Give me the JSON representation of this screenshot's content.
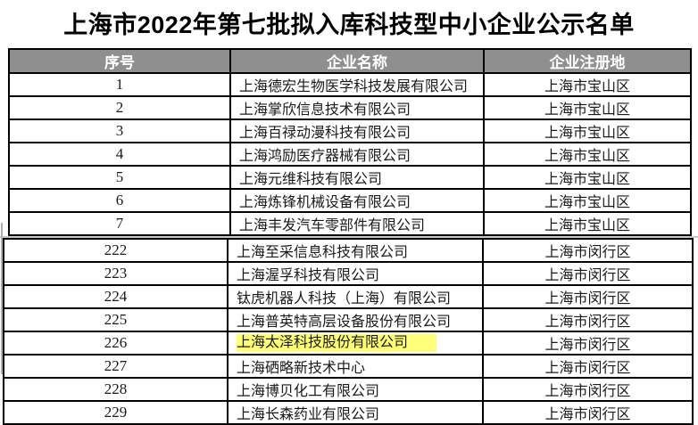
{
  "page": {
    "title": "上海市2022年第七批拟入库科技型中小企业公示名单"
  },
  "colors": {
    "header_bg": "#8f8f8f",
    "header_text": "#ffffff",
    "highlight_bg": "#ffff78"
  },
  "table": {
    "columns": [
      "序号",
      "企业名称",
      "企业注册地"
    ],
    "sections": [
      {
        "rows": [
          {
            "no": "1",
            "name": "上海德宏生物医学科技发展有限公司",
            "district": "上海市宝山区",
            "highlight": false
          },
          {
            "no": "2",
            "name": "上海掌欣信息技术有限公司",
            "district": "上海市宝山区",
            "highlight": false
          },
          {
            "no": "3",
            "name": "上海百禄动漫科技有限公司",
            "district": "上海市宝山区",
            "highlight": false
          },
          {
            "no": "4",
            "name": "上海鸿励医疗器械有限公司",
            "district": "上海市宝山区",
            "highlight": false
          },
          {
            "no": "5",
            "name": "上海元维科技有限公司",
            "district": "上海市宝山区",
            "highlight": false
          },
          {
            "no": "6",
            "name": "上海炼锋机械设备有限公司",
            "district": "上海市宝山区",
            "highlight": false
          },
          {
            "no": "7",
            "name": "上海丰发汽车零部件有限公司",
            "district": "上海市宝山区",
            "highlight": false
          }
        ]
      },
      {
        "rows": [
          {
            "no": "222",
            "name": "上海至采信息科技有限公司",
            "district": "上海市闵行区",
            "highlight": false
          },
          {
            "no": "223",
            "name": "上海渥孚科技有限公司",
            "district": "上海市闵行区",
            "highlight": false
          },
          {
            "no": "224",
            "name": "钛虎机器人科技（上海）有限公司",
            "district": "上海市闵行区",
            "highlight": false
          },
          {
            "no": "225",
            "name": "上海普英特高层设备股份有限公司",
            "district": "上海市闵行区",
            "highlight": false
          },
          {
            "no": "226",
            "name": "上海太泽科技股份有限公司",
            "district": "上海市闵行区",
            "highlight": true
          },
          {
            "no": "227",
            "name": "上海硒略新技术中心",
            "district": "上海市闵行区",
            "highlight": false
          },
          {
            "no": "228",
            "name": "上海博贝化工有限公司",
            "district": "上海市闵行区",
            "highlight": false
          },
          {
            "no": "229",
            "name": "上海长森药业有限公司",
            "district": "上海市闵行区",
            "highlight": false
          }
        ]
      }
    ]
  }
}
